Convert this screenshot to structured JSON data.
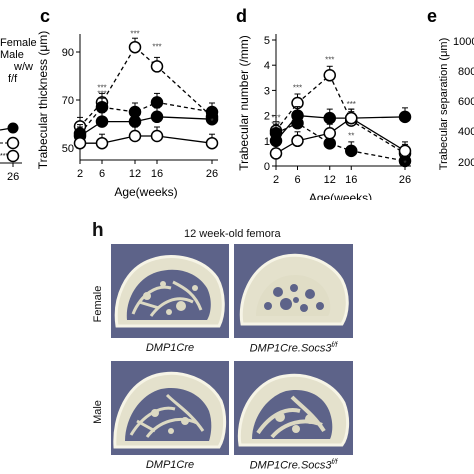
{
  "panels": {
    "b_partial": {
      "legend": [
        "Female",
        "Male",
        "w/w",
        "f/f"
      ],
      "x_tick": "26",
      "sig": "***"
    },
    "c": {
      "letter": "c"
    },
    "d": {
      "letter": "d"
    },
    "e": {
      "letter": "e",
      "ylabel": "Trabecular separation (μm)",
      "ticks": [
        "1000",
        "800",
        "600",
        "400",
        "200"
      ]
    },
    "h": {
      "letter": "h",
      "title": "12 week-old femora",
      "rows": [
        "Female",
        "Male"
      ],
      "captions": [
        "DMP1Cre",
        "DMP1Cre.Socs3",
        "f/f"
      ]
    }
  },
  "chart_data": [
    {
      "panel": "c",
      "type": "line",
      "title": "",
      "xlabel": "Age(weeks)",
      "ylabel": "Trabecular thickness (μm)",
      "x": [
        2,
        6,
        12,
        16,
        26
      ],
      "xticks": [
        "2",
        "6",
        "12",
        "16",
        "26"
      ],
      "ylim": [
        45,
        95
      ],
      "yticks": [
        "50",
        "70",
        "90"
      ],
      "series": [
        {
          "style": "open-dashed",
          "values": [
            59,
            69,
            92,
            84,
            63
          ]
        },
        {
          "style": "filled-dashed",
          "values": [
            56,
            67,
            65,
            69,
            65
          ]
        },
        {
          "style": "filled-solid",
          "values": [
            55,
            61,
            61,
            63,
            62
          ]
        },
        {
          "style": "open-solid",
          "values": [
            52,
            52,
            55,
            55,
            52
          ]
        }
      ],
      "annotations": [
        {
          "x": 6,
          "y": 74,
          "text": "***"
        },
        {
          "x": 6,
          "y": 71.5,
          "text": "***"
        },
        {
          "x": 12,
          "y": 96.5,
          "text": "***"
        },
        {
          "x": 16,
          "y": 91,
          "text": "***"
        },
        {
          "x": 26,
          "y": 60,
          "text": "*"
        }
      ]
    },
    {
      "panel": "d",
      "type": "line",
      "title": "",
      "xlabel": "Age(weeks)",
      "ylabel": "Trabecular number (/mm)",
      "x": [
        2,
        6,
        12,
        16,
        26
      ],
      "xticks": [
        "2",
        "6",
        "12",
        "16",
        "26"
      ],
      "ylim": [
        0,
        5
      ],
      "yticks": [
        "0",
        "1",
        "2",
        "3",
        "4",
        "5"
      ],
      "series": [
        {
          "style": "open-dashed",
          "values": [
            1.4,
            2.5,
            3.6,
            1.8,
            0.5
          ]
        },
        {
          "style": "filled-dashed",
          "values": [
            1.3,
            1.7,
            0.9,
            0.6,
            0.2
          ]
        },
        {
          "style": "filled-solid",
          "values": [
            1.0,
            2.0,
            1.9,
            1.9,
            1.95
          ]
        },
        {
          "style": "open-solid",
          "values": [
            0.5,
            1.0,
            1.3,
            1.9,
            0.6
          ]
        }
      ],
      "annotations": [
        {
          "x": 2,
          "y": 1.8,
          "text": "***"
        },
        {
          "x": 2,
          "y": 1.55,
          "text": "***"
        },
        {
          "x": 6,
          "y": 3.0,
          "text": "***"
        },
        {
          "x": 12,
          "y": 4.1,
          "text": "***"
        },
        {
          "x": 16,
          "y": 2.35,
          "text": "***"
        },
        {
          "x": 16,
          "y": 1.1,
          "text": "**"
        },
        {
          "x": 26,
          "y": 0.0,
          "text": "*"
        }
      ]
    }
  ]
}
